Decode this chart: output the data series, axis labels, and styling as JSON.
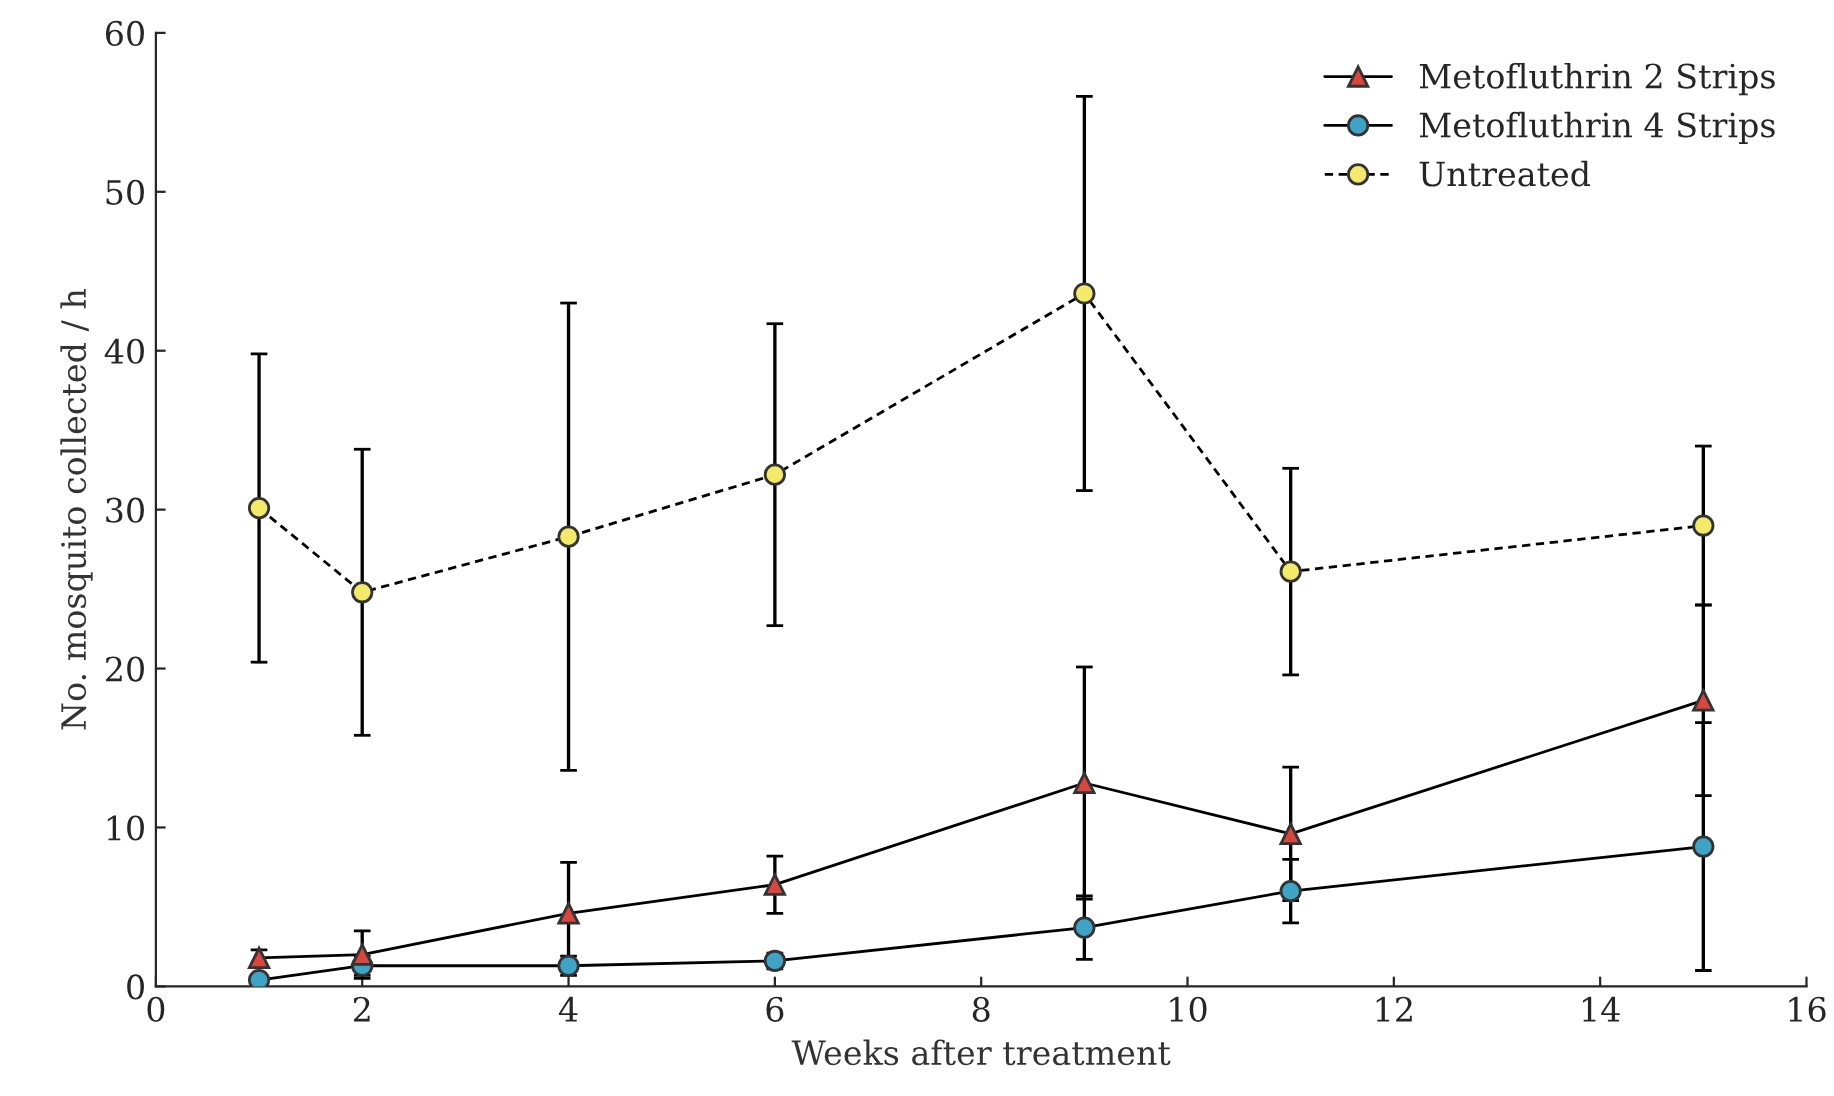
{
  "chart_data": {
    "type": "line",
    "xlabel": "Weeks after treatment",
    "ylabel": "No. mosquito collected / h",
    "xlim": [
      0,
      16
    ],
    "xticks": [
      0,
      2,
      4,
      6,
      8,
      10,
      12,
      14,
      16
    ],
    "ylim": [
      0,
      60
    ],
    "yticks": [
      0,
      10,
      20,
      30,
      40,
      50,
      60
    ],
    "x": [
      1,
      2,
      4,
      6,
      9,
      11,
      15
    ],
    "legend": "top right",
    "grid": false,
    "series": [
      {
        "name": "Metofluthrin 2 Strips",
        "color": "#d9463e",
        "marker": "triangle",
        "line_style": "solid",
        "values": [
          1.8,
          2.0,
          4.6,
          6.4,
          12.8,
          9.6,
          18.0
        ],
        "errors": [
          0.5,
          1.5,
          3.2,
          1.8,
          7.3,
          4.2,
          6.0
        ]
      },
      {
        "name": "Metofluthrin 4 Strips",
        "color": "#3fa3c6",
        "marker": "circle",
        "line_style": "solid",
        "values": [
          0.4,
          1.3,
          1.3,
          1.6,
          3.7,
          6.0,
          8.8
        ],
        "errors": [
          0.3,
          0.6,
          0.6,
          0.5,
          2.0,
          2.0,
          7.8
        ]
      },
      {
        "name": "Untreated",
        "color": "#f3e96a",
        "marker": "circle",
        "line_style": "dashed",
        "values": [
          30.1,
          24.8,
          28.3,
          32.2,
          43.6,
          26.1,
          29.0
        ],
        "errors": [
          9.7,
          9.0,
          14.7,
          9.5,
          12.4,
          6.5,
          5.0
        ]
      }
    ]
  }
}
